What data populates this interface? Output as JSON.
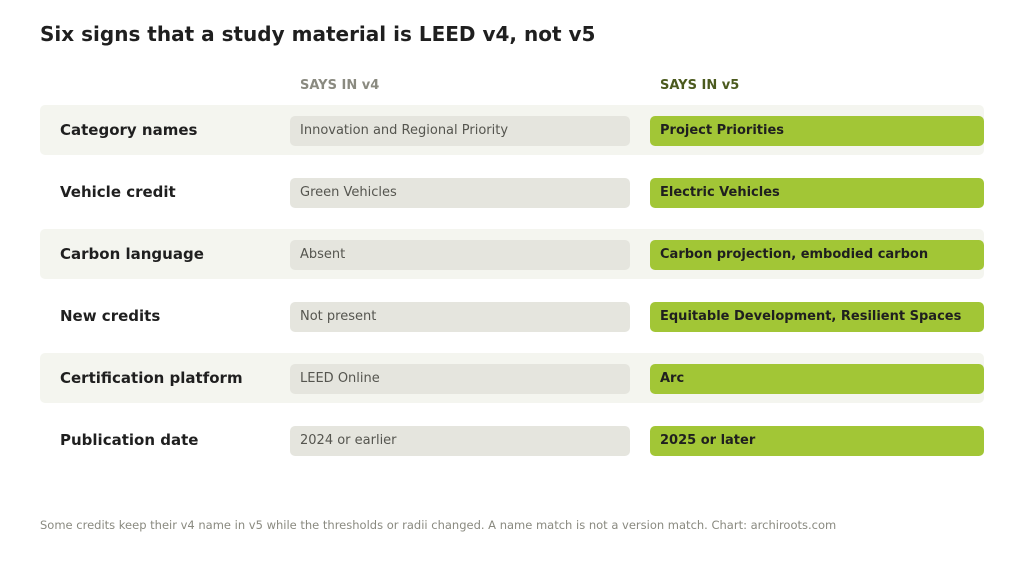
{
  "chart_data": {
    "type": "table",
    "title": "Six signs that a study material is LEED v4, not v5",
    "columns": [
      "SAYS IN v4",
      "SAYS IN v5"
    ],
    "rows": [
      {
        "label": "Category names",
        "v4": "Innovation and Regional Priority",
        "v5": "Project Priorities"
      },
      {
        "label": "Vehicle credit",
        "v4": "Green Vehicles",
        "v5": "Electric Vehicles"
      },
      {
        "label": "Carbon language",
        "v4": "Absent",
        "v5": "Carbon projection, embodied carbon"
      },
      {
        "label": "New credits",
        "v4": "Not present",
        "v5": "Equitable Development, Resilient Spaces"
      },
      {
        "label": "Certification platform",
        "v4": "LEED Online",
        "v5": "Arc"
      },
      {
        "label": "Publication date",
        "v4": "2024 or earlier",
        "v5": "2025 or later"
      }
    ],
    "footnote": "Some credits keep their v4 name in v5 while the thresholds or radii changed. A name match is not a version match. Chart: archiroots.com"
  },
  "colors": {
    "v4_pill": "#e5e5de",
    "v5_pill": "#a2c636",
    "row_shade": "#f4f5ef",
    "v5_header": "#4b5a1e",
    "v4_header": "#8a8a80"
  }
}
